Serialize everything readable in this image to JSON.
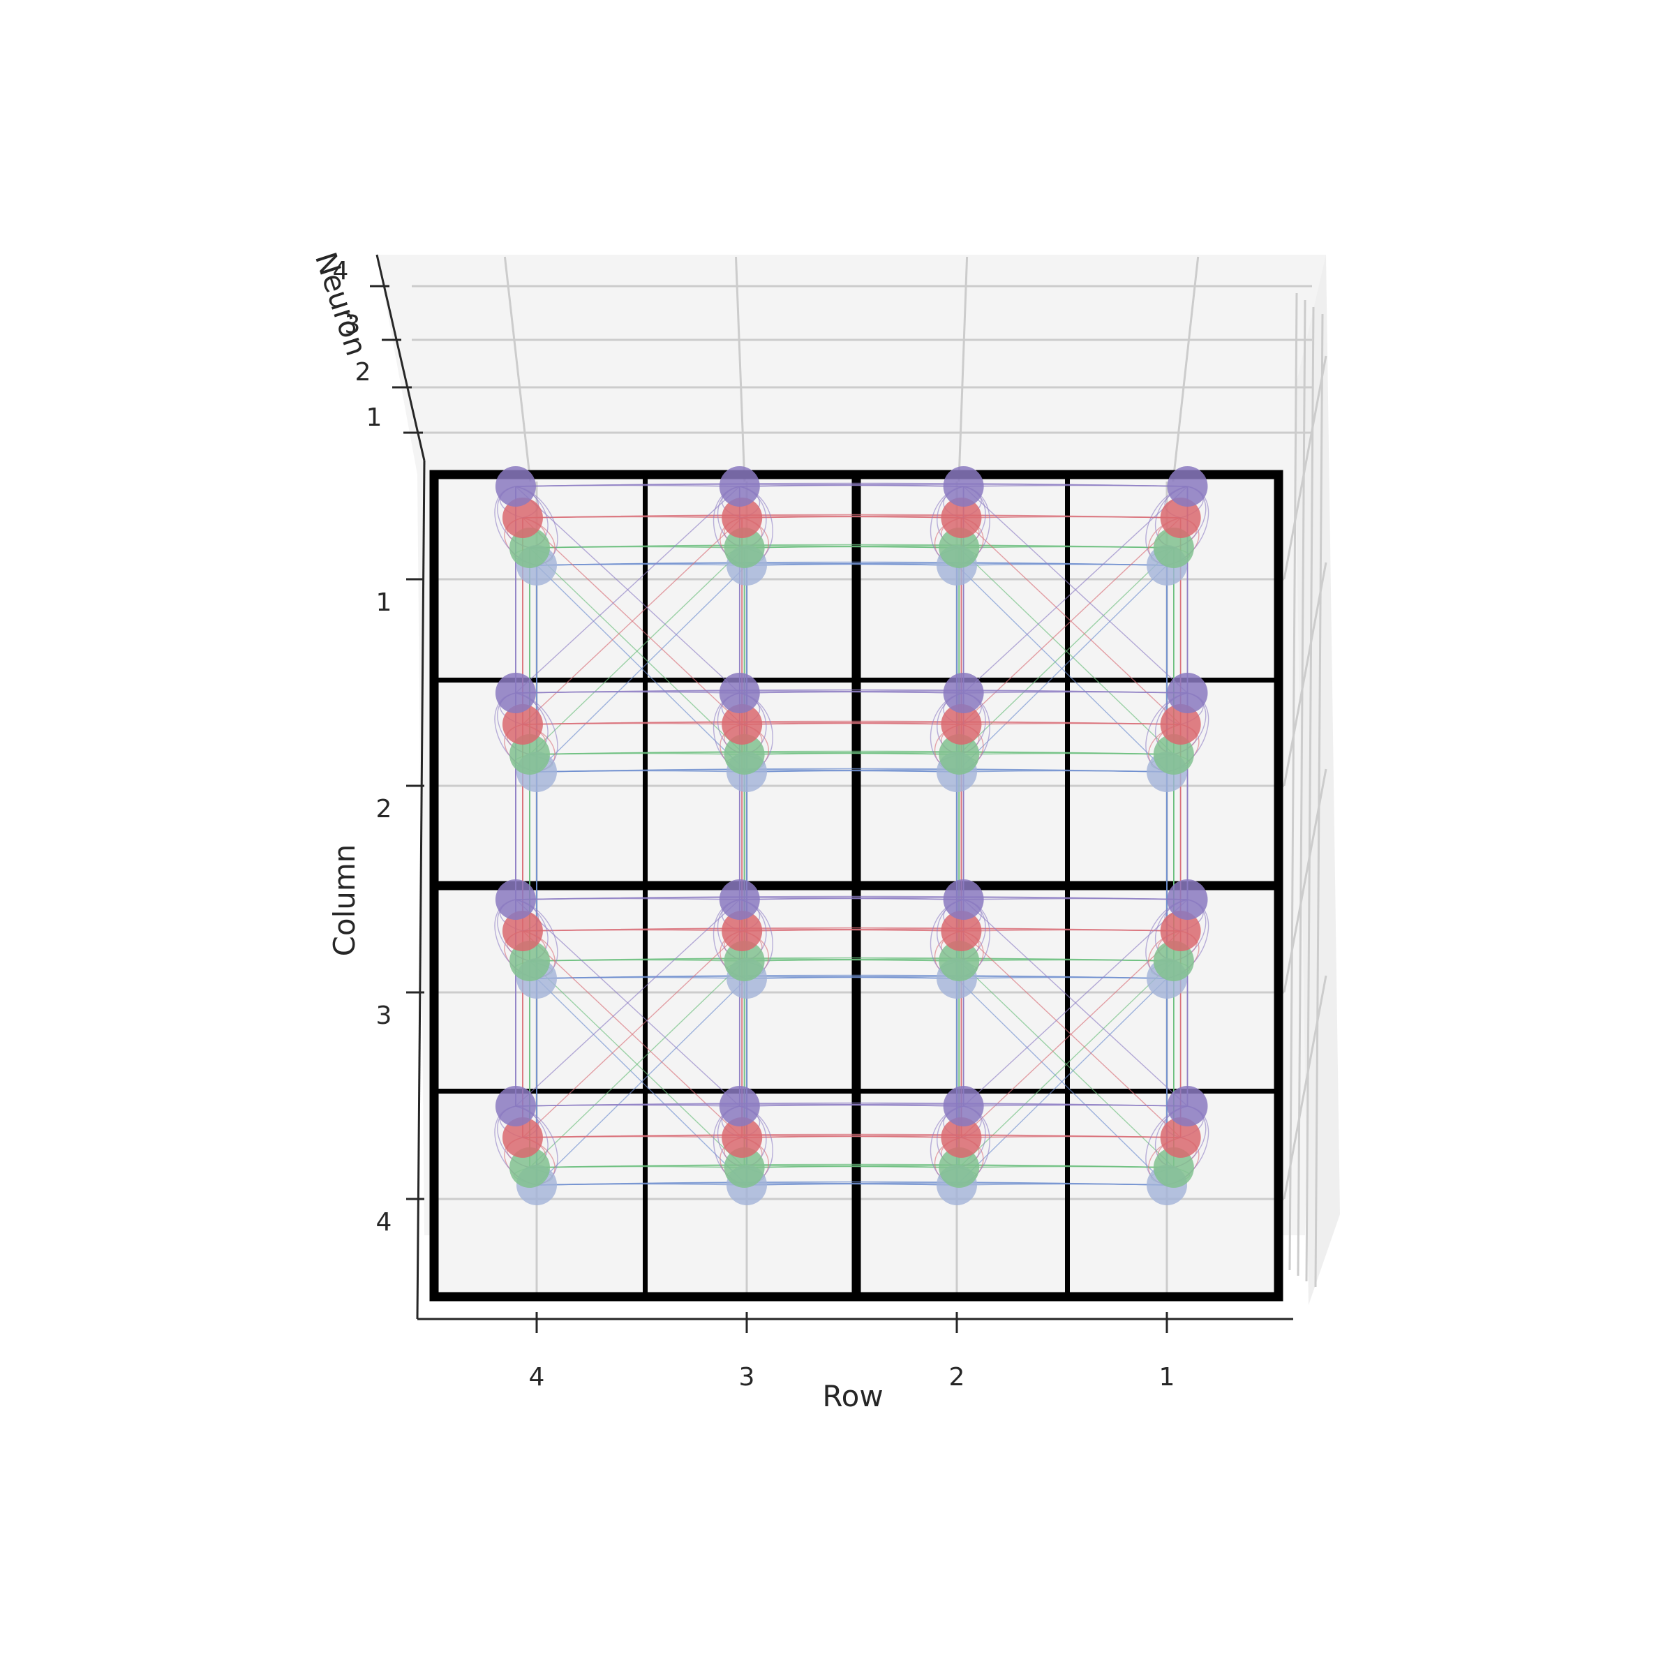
{
  "chart_data": {
    "type": "scatter",
    "title": "",
    "projection": "3d",
    "xlabel": "Row",
    "ylabel": "Column",
    "zlabel": "Neuron",
    "x_ticks": [
      "4",
      "3",
      "2",
      "1"
    ],
    "y_ticks": [
      "1",
      "2",
      "3",
      "4"
    ],
    "z_ticks": [
      "1",
      "2",
      "3",
      "4"
    ],
    "xlim": [
      0.5,
      4.5
    ],
    "ylim": [
      0.5,
      4.5
    ],
    "zlim": [
      1,
      4
    ],
    "grid": true,
    "rows": [
      1,
      2,
      3,
      4
    ],
    "columns": [
      1,
      2,
      3,
      4
    ],
    "board_blocks": [
      2,
      2
    ],
    "series": [
      {
        "neuron": 1,
        "color": "#a2b3d8"
      },
      {
        "neuron": 2,
        "color": "#81c18f"
      },
      {
        "neuron": 3,
        "color": "#d9686e"
      },
      {
        "neuron": 4,
        "color": "#8a79bf"
      }
    ],
    "connection_colors": {
      "1": "#6f8fcf",
      "2": "#6bbf7d",
      "3": "#d9707a",
      "4": "#8f7fc4"
    }
  }
}
